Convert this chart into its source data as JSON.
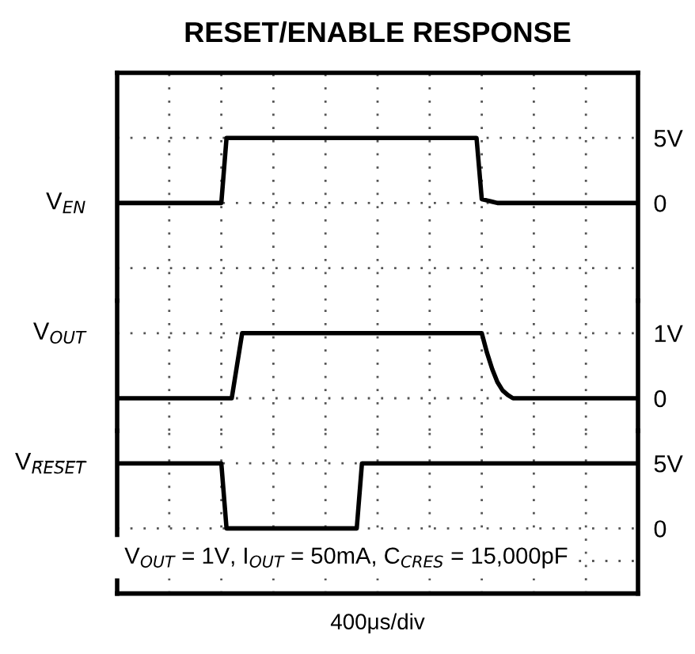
{
  "chart_data": [
    {
      "type": "line",
      "title": "RESET/ENABLE RESPONSE",
      "categories": [
        null,
        null,
        null,
        null,
        null,
        null,
        null,
        null,
        null,
        null,
        null,
        null,
        null,
        null,
        null,
        null,
        null,
        null,
        null,
        null,
        null,
        null,
        null,
        null,
        null,
        null,
        null,
        null,
        null,
        null,
        null,
        null,
        null,
        null,
        null,
        null,
        null,
        null,
        null,
        null,
        null,
        null,
        null,
        null,
        null,
        null,
        null,
        null,
        null,
        null,
        null,
        null,
        null,
        null,
        null,
        null,
        null,
        null,
        null,
        null,
        null,
        null,
        null,
        null,
        null,
        null,
        null,
        null,
        null,
        null,
        null,
        null,
        null,
        null,
        null,
        null,
        null,
        null,
        null,
        null,
        null,
        null,
        null,
        null,
        null,
        null,
        null,
        null,
        null,
        null,
        null,
        null,
        null,
        null,
        null,
        null,
        null,
        null,
        null,
        null,
        null
      ],
      "series": [
        {
          "color": "#000000",
          "values": [
            0,
            0,
            0,
            0,
            0,
            0,
            0,
            0,
            0,
            0,
            0,
            0,
            0,
            0,
            0,
            0,
            0,
            0,
            0,
            0,
            0,
            5,
            5,
            5,
            5,
            5,
            5,
            5,
            5,
            5,
            5,
            5,
            5,
            5,
            5,
            5,
            5,
            5,
            5,
            5,
            5,
            5,
            5,
            5,
            5,
            5,
            5,
            5,
            5,
            5,
            5,
            5,
            5,
            5,
            5,
            5,
            5,
            5,
            5,
            5,
            5,
            5,
            5,
            5,
            5,
            5,
            5,
            5,
            5,
            5,
            0.3,
            0.2,
            0.1,
            0,
            0,
            0,
            0,
            0,
            0,
            0,
            0,
            0,
            0,
            0,
            0,
            0,
            0,
            0,
            0,
            0,
            0,
            0,
            0,
            0,
            0,
            0,
            0,
            0,
            0,
            0,
            0
          ]
        }
      ],
      "annotations": [
        "V$_{EN}$"
      ],
      "ylim": [
        -7.5,
        10
      ],
      "yticks": [
        {
          "value": -5,
          "label": null
        },
        0,
        {
          "value": 5,
          "label": "5V"
        }
      ],
      "tick_labels": "y",
      "grid": true,
      "legend": false,
      "marker": "none",
      "line_style": "solid"
    },
    {
      "type": "line",
      "categories": [
        null,
        null,
        null,
        null,
        null,
        null,
        null,
        null,
        null,
        null,
        null,
        null,
        null,
        null,
        null,
        null,
        null,
        null,
        null,
        null,
        null,
        null,
        null,
        null,
        null,
        null,
        null,
        null,
        null,
        null,
        null,
        null,
        null,
        null,
        null,
        null,
        null,
        null,
        null,
        null,
        null,
        null,
        null,
        null,
        null,
        null,
        null,
        null,
        null,
        null,
        null,
        null,
        null,
        null,
        null,
        null,
        null,
        null,
        null,
        null,
        null,
        null,
        null,
        null,
        null,
        null,
        null,
        null,
        null,
        null,
        null,
        null,
        null,
        null,
        null,
        null,
        null,
        null,
        null,
        null,
        null,
        null,
        null,
        null,
        null,
        null,
        null,
        null,
        null,
        null,
        null,
        null,
        null,
        null,
        null,
        null,
        null,
        null,
        null,
        null,
        null
      ],
      "series": [
        {
          "color": "#000000",
          "values": [
            0,
            0,
            0,
            0,
            0,
            0,
            0,
            0,
            0,
            0,
            0,
            0,
            0,
            0,
            0,
            0,
            0,
            0,
            0,
            0,
            0,
            0,
            0,
            0.5,
            1,
            1,
            1,
            1,
            1,
            1,
            1,
            1,
            1,
            1,
            1,
            1,
            1,
            1,
            1,
            1,
            1,
            1,
            1,
            1,
            1,
            1,
            1,
            1,
            1,
            1,
            1,
            1,
            1,
            1,
            1,
            1,
            1,
            1,
            1,
            1,
            1,
            1,
            1,
            1,
            1,
            1,
            1,
            1,
            1,
            1,
            1,
            0.7,
            0.45,
            0.25,
            0.12,
            0.05,
            0,
            0,
            0,
            0,
            0,
            0,
            0,
            0,
            0,
            0,
            0,
            0,
            0,
            0,
            0,
            0,
            0,
            0,
            0,
            0,
            0,
            0,
            0,
            0,
            0
          ]
        }
      ],
      "annotations": [
        "V$_{OUT}$"
      ],
      "ylim": [
        -0.5,
        1.5
      ],
      "yticks": [
        0,
        {
          "value": 1,
          "label": "1V"
        }
      ],
      "tick_labels": "y",
      "grid": true,
      "legend": false,
      "marker": "none",
      "line_style": "solid"
    },
    {
      "type": "line",
      "xlabel": "400μs/div",
      "categories": [
        null,
        null,
        null,
        null,
        null,
        null,
        null,
        null,
        null,
        null,
        null,
        null,
        null,
        null,
        null,
        null,
        null,
        null,
        null,
        null,
        null,
        null,
        null,
        null,
        null,
        null,
        null,
        null,
        null,
        null,
        null,
        null,
        null,
        null,
        null,
        null,
        null,
        null,
        null,
        null,
        null,
        null,
        null,
        null,
        null,
        null,
        null,
        null,
        null,
        null,
        null,
        null,
        null,
        null,
        null,
        null,
        null,
        null,
        null,
        null,
        null,
        null,
        null,
        null,
        null,
        null,
        null,
        null,
        null,
        null,
        null,
        null,
        null,
        null,
        null,
        null,
        null,
        null,
        null,
        null,
        null,
        null,
        null,
        null,
        null,
        null,
        null,
        null,
        null,
        null,
        null,
        null,
        null,
        null,
        null,
        null,
        null,
        null,
        null,
        null,
        null
      ],
      "series": [
        {
          "color": "#000000",
          "values": [
            5,
            5,
            5,
            5,
            5,
            5,
            5,
            5,
            5,
            5,
            5,
            5,
            5,
            5,
            5,
            5,
            5,
            5,
            5,
            5,
            5,
            0,
            0,
            0,
            0,
            0,
            0,
            0,
            0,
            0,
            0,
            0,
            0,
            0,
            0,
            0,
            0,
            0,
            0,
            0,
            0,
            0,
            0,
            0,
            0,
            0,
            0,
            5,
            5,
            5,
            5,
            5,
            5,
            5,
            5,
            5,
            5,
            5,
            5,
            5,
            5,
            5,
            5,
            5,
            5,
            5,
            5,
            5,
            5,
            5,
            5,
            5,
            5,
            5,
            5,
            5,
            5,
            5,
            5,
            5,
            5,
            5,
            5,
            5,
            5,
            5,
            5,
            5,
            5,
            5,
            5,
            5,
            5,
            5,
            5,
            5,
            5,
            5,
            5,
            5,
            5
          ]
        }
      ],
      "annotations": [
        "V$_{R̅E̅S̅E̅T̅}$",
        "V$_{OUT}$ = 1V, I$_{OUT}$ = 50mA, C$_{CRES}$ = 15,000pF"
      ],
      "ylim": [
        -5,
        7.5
      ],
      "yticks": [
        {
          "value": -2.5,
          "label": null
        },
        0,
        {
          "value": 5,
          "label": "5V"
        }
      ],
      "tick_labels": "y",
      "grid": true,
      "legend": false,
      "marker": "none",
      "line_style": "solid"
    }
  ]
}
